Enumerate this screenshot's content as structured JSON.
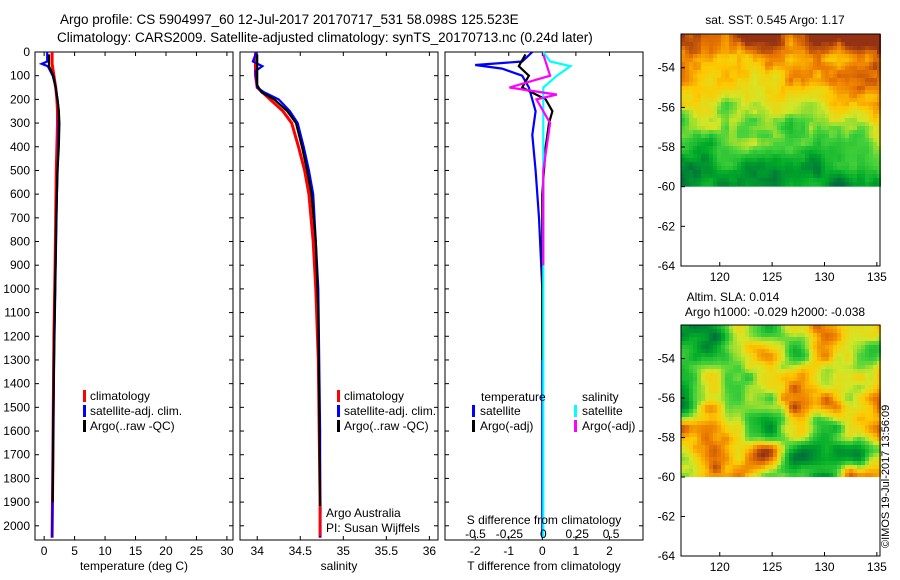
{
  "title": {
    "line1": "Argo profile: CS 5904997_60 12-Jul-2017 20170717_531 58.098S 125.523E",
    "line2": "Climatology: CARS2009. Satellite-adjusted climatology: synTS_20170713.nc (0.24d later)"
  },
  "colors": {
    "red": "#ff0000",
    "blue": "#0000ff",
    "black": "#000000",
    "cyan": "#00ffff",
    "magenta": "#ff00ff"
  },
  "chart_data": [
    {
      "type": "line",
      "id": "temperature",
      "xlabel": "temperature (deg C)",
      "xlim": [
        -1.5,
        31
      ],
      "ylim": [
        2060,
        0
      ],
      "xticks": [
        "0",
        "5",
        "10",
        "15",
        "20",
        "25",
        "30"
      ],
      "xtick_values": [
        0,
        5,
        10,
        15,
        20,
        25,
        30
      ],
      "yticks": [
        "0",
        "100",
        "200",
        "300",
        "400",
        "500",
        "600",
        "700",
        "800",
        "900",
        "1000",
        "1100",
        "1200",
        "1300",
        "1400",
        "1500",
        "1600",
        "1700",
        "1800",
        "1900",
        "2000"
      ],
      "ytick_values": [
        0,
        100,
        200,
        300,
        400,
        500,
        600,
        700,
        800,
        900,
        1000,
        1100,
        1200,
        1300,
        1400,
        1500,
        1600,
        1700,
        1800,
        1900,
        2000
      ],
      "legend": [
        "climatology",
        "satellite-adj. clim.",
        "Argo(..raw -QC)"
      ],
      "series": [
        {
          "name": "climatology",
          "color": "red",
          "x": [
            1.3,
            1.3,
            1.6,
            1.9,
            2.1,
            2.2,
            2.2,
            2.1,
            2.0,
            1.9,
            1.8,
            1.6,
            1.5,
            1.4,
            1.3
          ],
          "y": [
            0,
            50,
            100,
            150,
            200,
            250,
            300,
            400,
            500,
            700,
            900,
            1200,
            1500,
            1800,
            2050
          ]
        },
        {
          "name": "satellite-adj. clim.",
          "color": "blue",
          "x": [
            0.5,
            0.5,
            -0.4,
            0.6,
            1.4,
            1.9,
            2.2,
            2.4,
            2.3,
            2.1,
            1.9,
            1.7,
            1.5,
            1.4,
            1.3
          ],
          "y": [
            0,
            40,
            50,
            60,
            100,
            150,
            200,
            250,
            400,
            600,
            900,
            1200,
            1500,
            1800,
            2050
          ]
        },
        {
          "name": "Argo(..raw -QC)",
          "color": "black",
          "x": [
            0.8,
            0.8,
            1.5,
            1.9,
            2.2,
            2.4,
            2.5,
            2.4,
            2.2,
            2.0,
            1.8,
            1.6,
            1.5,
            1.4
          ],
          "y": [
            10,
            60,
            100,
            150,
            200,
            250,
            300,
            400,
            500,
            700,
            1000,
            1300,
            1600,
            1900
          ]
        }
      ]
    },
    {
      "type": "line",
      "id": "salinity",
      "xlabel": "salinity",
      "xlim": [
        33.8,
        36.1
      ],
      "ylim": [
        2060,
        0
      ],
      "xticks": [
        "34",
        "34.5",
        "35",
        "35.5",
        "36"
      ],
      "xtick_values": [
        34,
        34.5,
        35,
        35.5,
        36
      ],
      "legend": [
        "climatology",
        "satellite-adj. clim.",
        "Argo(..raw -QC)"
      ],
      "annotation": [
        "Argo Australia",
        "PI: Susan Wijffels"
      ],
      "series": [
        {
          "name": "climatology",
          "color": "red",
          "x": [
            33.98,
            33.98,
            34.0,
            34.15,
            34.3,
            34.4,
            34.48,
            34.55,
            34.6,
            34.65,
            34.68,
            34.71,
            34.72,
            34.73,
            34.73
          ],
          "y": [
            0,
            100,
            150,
            200,
            250,
            300,
            400,
            500,
            600,
            800,
            1000,
            1300,
            1600,
            1900,
            2050
          ]
        },
        {
          "name": "satellite-adj. clim.",
          "color": "blue",
          "x": [
            33.99,
            33.95,
            34.06,
            33.98,
            34.0,
            34.08,
            34.25,
            34.38,
            34.47,
            34.54,
            34.6,
            34.65,
            34.68,
            34.71,
            34.72,
            34.73,
            34.73
          ],
          "y": [
            0,
            40,
            60,
            80,
            150,
            170,
            200,
            250,
            300,
            400,
            500,
            600,
            800,
            1000,
            1300,
            1600,
            2050
          ]
        },
        {
          "name": "Argo(..raw -QC)",
          "color": "black",
          "x": [
            34.0,
            34.0,
            34.05,
            34.2,
            34.35,
            34.45,
            34.52,
            34.58,
            34.63,
            34.68,
            34.71,
            34.72,
            34.73
          ],
          "y": [
            10,
            140,
            170,
            200,
            250,
            300,
            400,
            500,
            600,
            800,
            1100,
            1500,
            1950
          ]
        }
      ]
    },
    {
      "type": "line",
      "id": "difference",
      "xlabel": "T difference from climatology",
      "xlabel_top": "S difference from climatology",
      "xlim": [
        -2.9,
        3.0
      ],
      "ylim": [
        2060,
        0
      ],
      "xticks": [
        "-2",
        "-1",
        "0",
        "1",
        "2"
      ],
      "xtick_values": [
        -2,
        -1,
        0,
        1,
        2
      ],
      "sxticks": [
        "-0.5",
        "-0.25",
        "0",
        "0.25",
        "0.5"
      ],
      "sxtick_values": [
        -0.5,
        -0.25,
        0,
        0.25,
        0.5
      ],
      "legend_headers": [
        "temperature",
        "salinity"
      ],
      "legend": [
        "satellite",
        "Argo(-adj)",
        "satellite",
        "Argo(-adj)"
      ],
      "series": [
        {
          "name": "satellite",
          "group": "temperature",
          "color": "blue",
          "x": [
            -0.3,
            -0.6,
            -2.0,
            -1.2,
            -0.6,
            -0.4,
            -0.2,
            -0.3,
            -0.2,
            -0.1,
            0.0,
            0.0,
            0.0,
            0.0
          ],
          "y": [
            0,
            40,
            55,
            70,
            100,
            150,
            250,
            350,
            500,
            700,
            1000,
            1400,
            1800,
            2050
          ]
        },
        {
          "name": "Argo(-adj)",
          "group": "temperature",
          "color": "black",
          "x": [
            -0.5,
            -0.7,
            -0.4,
            -0.6,
            0.1,
            0.3,
            0.2,
            0.1,
            0.0,
            0.0,
            0.0
          ],
          "y": [
            10,
            60,
            100,
            150,
            200,
            250,
            300,
            400,
            600,
            900,
            1300
          ]
        },
        {
          "name": "satellite",
          "group": "salinity",
          "color": "cyan",
          "x": [
            0.0,
            0.05,
            0.2,
            0.1,
            0.0,
            0.0,
            0.0,
            0.0,
            0.0
          ],
          "y": [
            0,
            40,
            60,
            100,
            150,
            300,
            600,
            1200,
            2050
          ]
        },
        {
          "name": "Argo(-adj)",
          "group": "salinity",
          "color": "magenta",
          "x": [
            0.0,
            0.05,
            -0.25,
            0.1,
            -0.05,
            0.05,
            0.0,
            0.0
          ],
          "y": [
            10,
            100,
            150,
            180,
            200,
            300,
            500,
            900
          ]
        }
      ]
    },
    {
      "type": "heatmap",
      "id": "sst_map",
      "title": "sat. SST: 0.545 Argo: 1.17",
      "xticks": [
        "120",
        "125",
        "130",
        "135"
      ],
      "xtick_values": [
        120,
        125,
        130,
        135
      ],
      "yticks": [
        "-54",
        "-56",
        "-58",
        "-60",
        "-62",
        "-64"
      ],
      "ytick_values": [
        -54,
        -56,
        -58,
        -60,
        -62,
        -64
      ],
      "xlim": [
        116.3,
        135.3
      ],
      "ylim": [
        -64,
        -52.3
      ],
      "data_bottom": -60
    },
    {
      "type": "heatmap",
      "id": "sla_map",
      "title_lines": [
        "Altim. SLA: 0.014",
        "Argo h1000: -0.029 h2000: -0.038"
      ],
      "xticks": [
        "120",
        "125",
        "130",
        "135"
      ],
      "xtick_values": [
        120,
        125,
        130,
        135
      ],
      "yticks": [
        "-54",
        "-56",
        "-58",
        "-60",
        "-62",
        "-64"
      ],
      "ytick_values": [
        -54,
        -56,
        -58,
        -60,
        -62,
        -64
      ],
      "xlim": [
        116.3,
        135.3
      ],
      "ylim": [
        -64,
        -52.3
      ],
      "data_bottom": -60
    }
  ],
  "side_label": "©IMOS 19-Jul-2017 13:56:09"
}
